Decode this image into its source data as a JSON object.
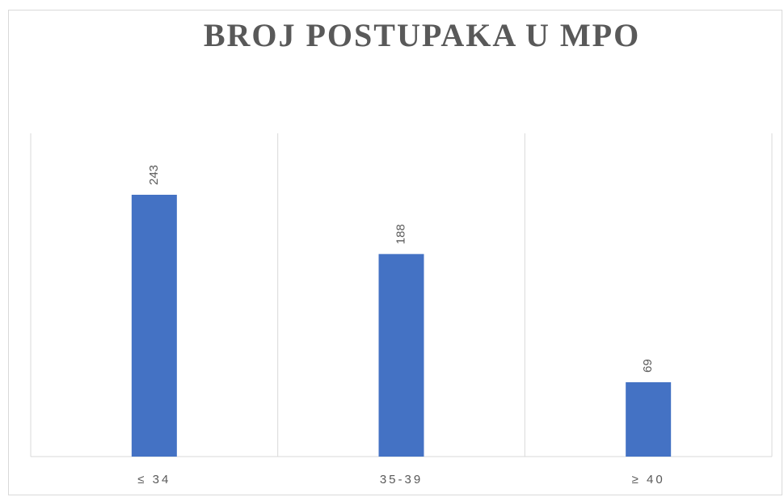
{
  "chart_data": {
    "type": "bar",
    "title": "BROJ POSTUPAKA U MPO",
    "categories": [
      "≤ 34",
      "35-39",
      "≥ 40"
    ],
    "values": [
      243,
      188,
      69
    ],
    "color": "#4472c4",
    "ylim": [
      0,
      300
    ],
    "grid": true
  }
}
